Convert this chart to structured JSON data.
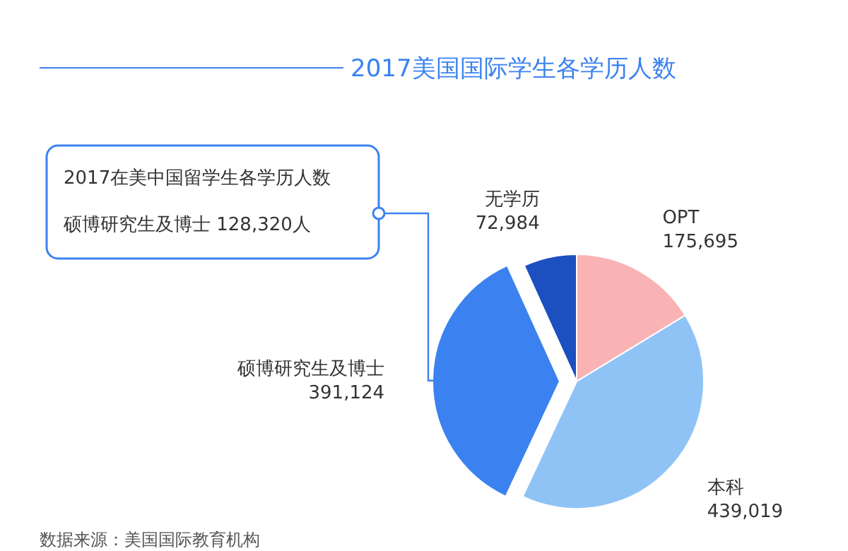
{
  "chart_data": {
    "type": "pie",
    "title": "2017美国国际学生各学历人数",
    "categories": [
      "OPT",
      "本科",
      "硕博研究生及博士",
      "无学历"
    ],
    "values": [
      175695,
      439019,
      391124,
      72984
    ],
    "colors": [
      "#f9b3b5",
      "#8fc3f5",
      "#3b82f0",
      "#1c4fc0"
    ],
    "value_labels": [
      "175,695",
      "439,019",
      "391,124",
      "72,984"
    ],
    "annotations": [
      "2017在美中国留学生各学历人数",
      "硕博研究生及博士 128,320人",
      "数据来源：美国国际教育机构"
    ]
  }
}
